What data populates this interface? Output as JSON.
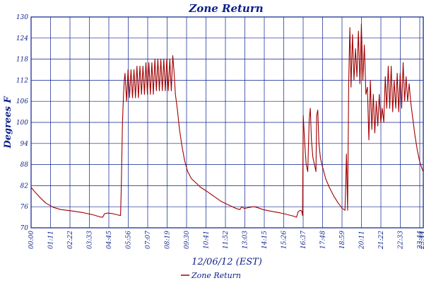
{
  "chart_data": {
    "type": "line",
    "title": "Zone Return",
    "xlabel": "12/06/12 (EST)",
    "ylabel": "Degrees F",
    "ylim": [
      70,
      130
    ],
    "y_ticks": [
      70,
      76,
      82,
      88,
      94,
      100,
      106,
      112,
      118,
      124,
      130
    ],
    "x_tick_labels": [
      "00:00",
      "01:11",
      "02:22",
      "03:33",
      "04:45",
      "05:56",
      "07:07",
      "08:19",
      "09:30",
      "10:41",
      "11:52",
      "13:03",
      "14:15",
      "15:26",
      "16:37",
      "17:48",
      "18:59",
      "20:11",
      "21:22",
      "22:33",
      "23:44",
      "23:44"
    ],
    "grid": true,
    "legend_position": "bottom-center",
    "colors": {
      "series": "#a00000",
      "grid": "#0b1f8c",
      "text": "#0b1f8c"
    },
    "series": [
      {
        "name": "Zone Return",
        "points": [
          [
            0,
            81.5
          ],
          [
            12,
            80
          ],
          [
            25,
            78.5
          ],
          [
            40,
            77
          ],
          [
            60,
            75.8
          ],
          [
            80,
            75.2
          ],
          [
            110,
            74.8
          ],
          [
            140,
            74.3
          ],
          [
            170,
            73.6
          ],
          [
            185,
            73.1
          ],
          [
            192,
            73
          ],
          [
            197,
            74
          ],
          [
            205,
            74.2
          ],
          [
            220,
            74
          ],
          [
            235,
            73.6
          ],
          [
            240,
            73.5
          ],
          [
            242,
            82
          ],
          [
            245,
            100
          ],
          [
            248,
            108
          ],
          [
            250,
            112
          ],
          [
            252,
            114
          ],
          [
            256,
            106
          ],
          [
            260,
            115
          ],
          [
            264,
            107
          ],
          [
            268,
            115
          ],
          [
            272,
            107
          ],
          [
            276,
            115
          ],
          [
            280,
            107
          ],
          [
            284,
            116
          ],
          [
            288,
            107
          ],
          [
            292,
            116
          ],
          [
            296,
            108
          ],
          [
            300,
            116
          ],
          [
            304,
            108
          ],
          [
            308,
            117
          ],
          [
            312,
            108
          ],
          [
            316,
            117
          ],
          [
            320,
            108
          ],
          [
            324,
            117
          ],
          [
            328,
            108
          ],
          [
            332,
            118
          ],
          [
            336,
            109
          ],
          [
            340,
            118
          ],
          [
            344,
            109
          ],
          [
            348,
            118
          ],
          [
            352,
            109
          ],
          [
            356,
            118
          ],
          [
            360,
            109
          ],
          [
            364,
            118
          ],
          [
            368,
            109
          ],
          [
            372,
            118
          ],
          [
            376,
            109
          ],
          [
            380,
            119
          ],
          [
            383,
            115
          ],
          [
            387,
            108
          ],
          [
            392,
            104
          ],
          [
            398,
            98
          ],
          [
            405,
            93
          ],
          [
            412,
            89
          ],
          [
            420,
            86
          ],
          [
            430,
            84
          ],
          [
            440,
            83
          ],
          [
            455,
            81.5
          ],
          [
            470,
            80.5
          ],
          [
            490,
            79
          ],
          [
            510,
            77.5
          ],
          [
            530,
            76.5
          ],
          [
            550,
            75.5
          ],
          [
            560,
            75.2
          ],
          [
            565,
            76
          ],
          [
            572,
            75.5
          ],
          [
            580,
            75.7
          ],
          [
            590,
            75.9
          ],
          [
            598,
            76
          ],
          [
            606,
            75.8
          ],
          [
            614,
            75.5
          ],
          [
            622,
            75.2
          ],
          [
            635,
            74.9
          ],
          [
            650,
            74.6
          ],
          [
            670,
            74.2
          ],
          [
            690,
            73.7
          ],
          [
            705,
            73.3
          ],
          [
            712,
            73
          ],
          [
            716,
            74.5
          ],
          [
            722,
            75
          ],
          [
            726,
            74.8
          ],
          [
            728,
            73.5
          ],
          [
            730,
            102
          ],
          [
            734,
            94
          ],
          [
            738,
            88
          ],
          [
            742,
            86
          ],
          [
            746,
            101
          ],
          [
            749,
            104
          ],
          [
            752,
            95
          ],
          [
            756,
            90
          ],
          [
            760,
            88
          ],
          [
            764,
            86
          ],
          [
            766,
            102
          ],
          [
            769,
            103.5
          ],
          [
            772,
            94
          ],
          [
            776,
            90
          ],
          [
            780,
            88
          ],
          [
            784,
            86.5
          ],
          [
            790,
            84
          ],
          [
            800,
            81.5
          ],
          [
            812,
            79
          ],
          [
            824,
            77
          ],
          [
            835,
            75.5
          ],
          [
            842,
            75
          ],
          [
            846,
            91
          ],
          [
            849,
            75
          ],
          [
            852,
            112
          ],
          [
            855,
            127
          ],
          [
            858,
            110
          ],
          [
            862,
            125
          ],
          [
            866,
            112
          ],
          [
            870,
            121
          ],
          [
            874,
            113
          ],
          [
            878,
            126
          ],
          [
            882,
            111
          ],
          [
            886,
            128
          ],
          [
            890,
            112
          ],
          [
            894,
            122
          ],
          [
            898,
            108
          ],
          [
            902,
            110
          ],
          [
            906,
            95
          ],
          [
            910,
            112
          ],
          [
            914,
            98
          ],
          [
            918,
            108
          ],
          [
            922,
            97
          ],
          [
            926,
            106
          ],
          [
            930,
            99
          ],
          [
            934,
            108
          ],
          [
            938,
            100
          ],
          [
            942,
            104
          ],
          [
            946,
            100
          ],
          [
            950,
            113
          ],
          [
            954,
            104
          ],
          [
            958,
            116
          ],
          [
            962,
            104
          ],
          [
            966,
            116
          ],
          [
            970,
            103
          ],
          [
            974,
            112
          ],
          [
            978,
            104
          ],
          [
            982,
            114
          ],
          [
            986,
            103
          ],
          [
            990,
            114
          ],
          [
            994,
            104
          ],
          [
            998,
            117
          ],
          [
            1002,
            106
          ],
          [
            1006,
            113
          ],
          [
            1010,
            106
          ],
          [
            1014,
            111
          ],
          [
            1018,
            106
          ],
          [
            1024,
            101
          ],
          [
            1030,
            96
          ],
          [
            1036,
            92
          ],
          [
            1042,
            89
          ],
          [
            1048,
            87
          ],
          [
            1052,
            86
          ]
        ]
      }
    ]
  }
}
